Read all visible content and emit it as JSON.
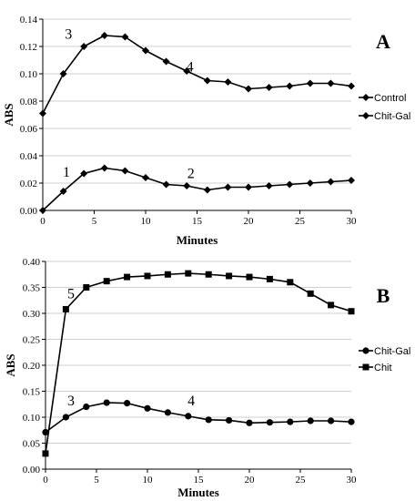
{
  "chart_data": [
    {
      "type": "line",
      "panel_label": "A",
      "xlabel": "Minutes",
      "ylabel": "ABS",
      "xlim": [
        0,
        30
      ],
      "ylim": [
        0,
        0.14
      ],
      "xticks": [
        "0",
        "5",
        "10",
        "15",
        "20",
        "25",
        "30"
      ],
      "yticks": [
        "0.00",
        "0.02",
        "0.04",
        "0.06",
        "0.08",
        "0.10",
        "0.12",
        "0.14"
      ],
      "grid": true,
      "legend_position": "right",
      "x": [
        0,
        2,
        4,
        6,
        8,
        10,
        12,
        14,
        16,
        18,
        20,
        22,
        24,
        26,
        28,
        30
      ],
      "series": [
        {
          "name": "Control",
          "marker": "diamond",
          "values": [
            0.071,
            0.1,
            0.12,
            0.128,
            0.127,
            0.117,
            0.109,
            0.102,
            0.095,
            0.094,
            0.089,
            0.09,
            0.091,
            0.093,
            0.093,
            0.091
          ]
        },
        {
          "name": "Chit-Gal",
          "marker": "diamond",
          "values": [
            0.0,
            0.014,
            0.027,
            0.031,
            0.029,
            0.024,
            0.019,
            0.018,
            0.015,
            0.017,
            0.017,
            0.018,
            0.019,
            0.02,
            0.021,
            0.022
          ]
        }
      ],
      "annotations": [
        {
          "text": "3",
          "x": 2.5,
          "y": 0.129
        },
        {
          "text": "4",
          "x": 14.3,
          "y": 0.105
        },
        {
          "text": "1",
          "x": 2.3,
          "y": 0.028
        },
        {
          "text": "2",
          "x": 14.4,
          "y": 0.027
        }
      ]
    },
    {
      "type": "line",
      "panel_label": "B",
      "xlabel": "Minutes",
      "ylabel": "ABS",
      "xlim": [
        0,
        30
      ],
      "ylim": [
        0,
        0.4
      ],
      "xticks": [
        "0",
        "5",
        "10",
        "15",
        "20",
        "25",
        "30"
      ],
      "yticks": [
        "0.00",
        "0.05",
        "0.10",
        "0.15",
        "0.20",
        "0.25",
        "0.30",
        "0.35",
        "0.40"
      ],
      "grid": true,
      "legend_position": "right",
      "x": [
        0,
        2,
        4,
        6,
        8,
        10,
        12,
        14,
        16,
        18,
        20,
        22,
        24,
        26,
        28,
        30
      ],
      "series": [
        {
          "name": "Chit-Gal",
          "marker": "circle",
          "values": [
            0.071,
            0.1,
            0.12,
            0.128,
            0.127,
            0.117,
            0.109,
            0.102,
            0.095,
            0.094,
            0.089,
            0.09,
            0.091,
            0.093,
            0.093,
            0.091
          ]
        },
        {
          "name": "Chit",
          "marker": "square",
          "values": [
            0.03,
            0.308,
            0.35,
            0.362,
            0.37,
            0.372,
            0.375,
            0.377,
            0.375,
            0.372,
            0.37,
            0.366,
            0.36,
            0.338,
            0.316,
            0.304
          ]
        }
      ],
      "annotations": [
        {
          "text": "5",
          "x": 2.5,
          "y": 0.338
        },
        {
          "text": "3",
          "x": 2.5,
          "y": 0.132
        },
        {
          "text": "4",
          "x": 14.3,
          "y": 0.132
        }
      ]
    }
  ]
}
